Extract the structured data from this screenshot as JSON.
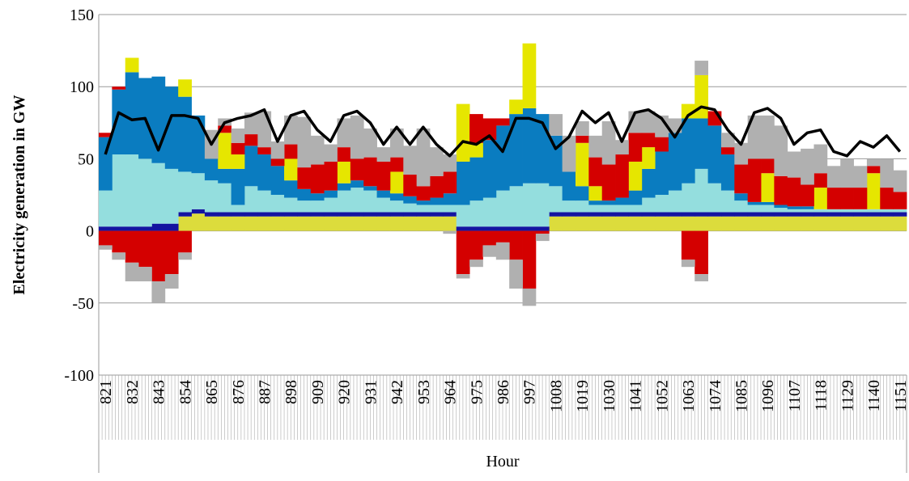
{
  "chart_data": {
    "type": "combo",
    "y_label": "Electricity generation in GW",
    "x_label": "Hour",
    "categories": [
      "821",
      null,
      "832",
      null,
      "843",
      null,
      "854",
      null,
      "865",
      null,
      "876",
      null,
      "887",
      null,
      "898",
      null,
      "909",
      null,
      "920",
      null,
      "931",
      null,
      "942",
      null,
      "953",
      null,
      "964",
      null,
      "975",
      null,
      "986",
      null,
      "997",
      null,
      "1008",
      null,
      "1019",
      null,
      "1030",
      null,
      "1041",
      null,
      "1052",
      null,
      "1063",
      null,
      "1074",
      null,
      "1085",
      null,
      "1096",
      null,
      "1107",
      null,
      "1118",
      null,
      "1129",
      null,
      "1140",
      null,
      "1151"
    ],
    "ylim": [
      -100,
      150
    ],
    "yticks": [
      -100,
      -50,
      0,
      50,
      100,
      150
    ],
    "grid": true,
    "series": [
      {
        "color": "#dcdc3c",
        "values": [
          0,
          0,
          0,
          0,
          0,
          0,
          10,
          12,
          10,
          10,
          10,
          10,
          10,
          10,
          10,
          10,
          10,
          10,
          10,
          10,
          10,
          10,
          10,
          10,
          10,
          10,
          10,
          0,
          0,
          0,
          0,
          0,
          0,
          0,
          10,
          10,
          10,
          10,
          10,
          10,
          10,
          10,
          10,
          10,
          10,
          10,
          10,
          10,
          10,
          10,
          10,
          10,
          10,
          10,
          10,
          10,
          10,
          10,
          10,
          10,
          10
        ]
      },
      {
        "color": "#1414a0",
        "values": [
          3,
          3,
          3,
          3,
          5,
          5,
          3,
          3,
          3,
          3,
          3,
          3,
          3,
          3,
          3,
          3,
          3,
          3,
          3,
          3,
          3,
          3,
          3,
          3,
          3,
          3,
          3,
          3,
          3,
          3,
          3,
          3,
          3,
          3,
          3,
          3,
          3,
          3,
          3,
          3,
          3,
          3,
          3,
          3,
          3,
          3,
          3,
          3,
          3,
          3,
          3,
          3,
          3,
          3,
          3,
          3,
          3,
          3,
          3,
          3,
          3
        ]
      },
      {
        "color": "#94dede",
        "values": [
          25,
          50,
          50,
          47,
          42,
          38,
          28,
          25,
          22,
          20,
          5,
          18,
          15,
          12,
          10,
          8,
          8,
          10,
          15,
          17,
          15,
          10,
          8,
          6,
          5,
          5,
          5,
          15,
          18,
          20,
          25,
          28,
          30,
          30,
          18,
          8,
          8,
          5,
          5,
          5,
          5,
          10,
          12,
          15,
          20,
          30,
          20,
          15,
          8,
          5,
          5,
          3,
          2,
          2,
          2,
          2,
          2,
          2,
          2,
          2,
          2
        ]
      },
      {
        "color": "#0a7cc0",
        "values": [
          37,
          45,
          57,
          56,
          60,
          57,
          52,
          40,
          15,
          10,
          25,
          28,
          25,
          20,
          12,
          8,
          5,
          5,
          5,
          5,
          3,
          5,
          5,
          5,
          3,
          5,
          8,
          30,
          30,
          40,
          45,
          50,
          52,
          48,
          35,
          20,
          10,
          3,
          3,
          5,
          10,
          20,
          30,
          40,
          45,
          35,
          40,
          25,
          5,
          2,
          2,
          2,
          2,
          2,
          0,
          0,
          0,
          0,
          0,
          0,
          0
        ]
      },
      {
        "color": "#e6e600",
        "values": [
          0,
          0,
          10,
          0,
          0,
          0,
          12,
          0,
          0,
          25,
          10,
          0,
          0,
          0,
          15,
          0,
          0,
          0,
          15,
          0,
          0,
          0,
          15,
          0,
          0,
          0,
          0,
          40,
          10,
          0,
          0,
          10,
          45,
          0,
          0,
          0,
          30,
          10,
          0,
          0,
          20,
          15,
          0,
          0,
          10,
          30,
          0,
          0,
          0,
          0,
          20,
          0,
          0,
          0,
          15,
          0,
          0,
          0,
          25,
          0,
          0
        ]
      },
      {
        "color": "#d40000",
        "values": [
          3,
          2,
          0,
          0,
          0,
          0,
          0,
          0,
          0,
          5,
          8,
          8,
          5,
          5,
          10,
          15,
          20,
          20,
          10,
          15,
          20,
          20,
          10,
          15,
          10,
          15,
          15,
          0,
          20,
          15,
          5,
          0,
          0,
          0,
          0,
          0,
          5,
          20,
          25,
          30,
          20,
          10,
          10,
          0,
          0,
          0,
          10,
          5,
          20,
          30,
          10,
          20,
          20,
          15,
          10,
          15,
          15,
          15,
          5,
          15,
          12
        ]
      },
      {
        "color": "#b0b0b0",
        "values": [
          0,
          0,
          0,
          0,
          0,
          0,
          0,
          0,
          20,
          5,
          10,
          15,
          25,
          12,
          20,
          35,
          20,
          12,
          20,
          30,
          20,
          10,
          20,
          20,
          40,
          20,
          12,
          0,
          0,
          0,
          0,
          0,
          0,
          0,
          15,
          25,
          10,
          15,
          30,
          10,
          15,
          15,
          15,
          10,
          0,
          10,
          0,
          10,
          15,
          30,
          30,
          35,
          18,
          25,
          20,
          15,
          20,
          15,
          5,
          20,
          15
        ]
      },
      {
        "color": "#d40000",
        "values": [
          -10,
          -15,
          -22,
          -25,
          -35,
          -30,
          -15,
          0,
          0,
          0,
          0,
          0,
          0,
          0,
          0,
          0,
          0,
          0,
          0,
          0,
          0,
          0,
          0,
          0,
          0,
          0,
          0,
          -30,
          -20,
          -10,
          -8,
          -20,
          -40,
          -2,
          0,
          0,
          0,
          0,
          0,
          0,
          0,
          0,
          0,
          0,
          -20,
          -30,
          0,
          0,
          0,
          0,
          0,
          0,
          0,
          0,
          0,
          0,
          0,
          0,
          0,
          0,
          0
        ]
      },
      {
        "color": "#b0b0b0",
        "values": [
          -3,
          -5,
          -13,
          -10,
          -15,
          -10,
          -5,
          0,
          0,
          0,
          0,
          0,
          0,
          0,
          0,
          0,
          0,
          0,
          0,
          0,
          0,
          0,
          0,
          0,
          0,
          0,
          -2,
          -3,
          -5,
          -8,
          -12,
          -20,
          -12,
          -5,
          0,
          0,
          0,
          0,
          0,
          0,
          0,
          0,
          0,
          0,
          -5,
          -5,
          0,
          0,
          0,
          0,
          0,
          0,
          0,
          0,
          0,
          0,
          0,
          0,
          0,
          0,
          0
        ]
      }
    ],
    "line": {
      "color": "#000000",
      "values": [
        53,
        82,
        77,
        78,
        56,
        80,
        80,
        78,
        60,
        75,
        78,
        80,
        84,
        62,
        80,
        83,
        70,
        62,
        80,
        83,
        75,
        60,
        72,
        60,
        72,
        60,
        52,
        62,
        60,
        66,
        55,
        78,
        78,
        75,
        57,
        65,
        83,
        75,
        82,
        62,
        82,
        84,
        78,
        65,
        80,
        86,
        84,
        70,
        60,
        82,
        85,
        78,
        60,
        68,
        70,
        55,
        52,
        62,
        58,
        66,
        55
      ]
    }
  }
}
